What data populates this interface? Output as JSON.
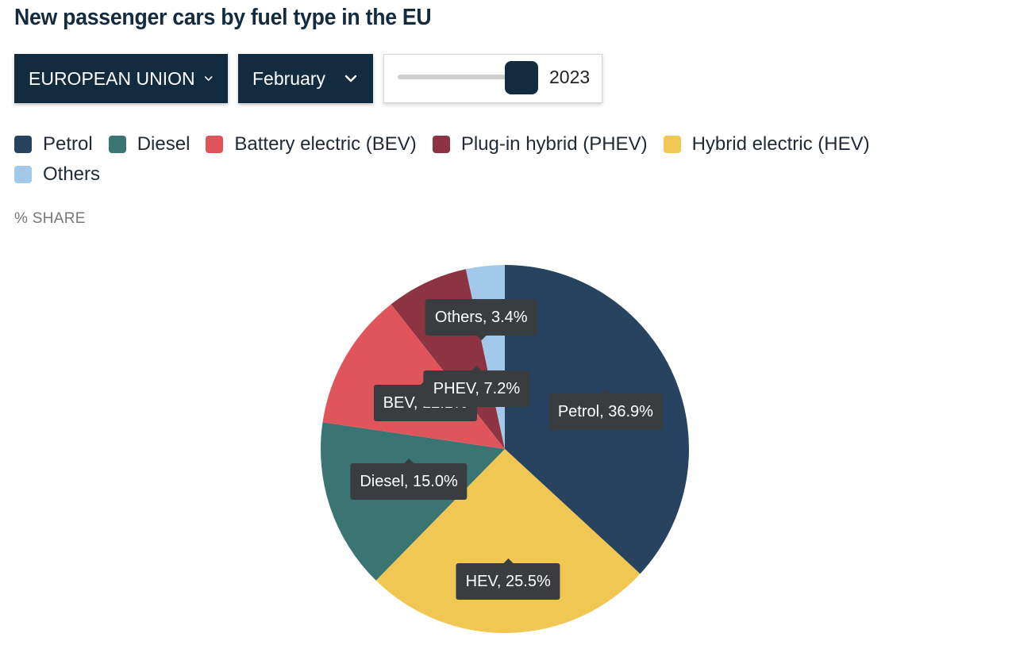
{
  "title": "New passenger cars by fuel type in the EU",
  "controls": {
    "region": "EUROPEAN UNION",
    "month": "February",
    "year": "2023"
  },
  "unit_label": "% SHARE",
  "chart_data": {
    "type": "pie",
    "title": "New passenger cars by fuel type in the EU",
    "unit": "% SHARE",
    "legend": [
      {
        "name": "Petrol",
        "color": "#27435f"
      },
      {
        "name": "Diesel",
        "color": "#3a7573"
      },
      {
        "name": "Battery electric (BEV)",
        "color": "#e0555b"
      },
      {
        "name": "Plug-in hybrid (PHEV)",
        "color": "#8c3441"
      },
      {
        "name": "Hybrid electric (HEV)",
        "color": "#f0c752"
      },
      {
        "name": "Others",
        "color": "#a3c9ea"
      }
    ],
    "slices": [
      {
        "short": "Petrol",
        "value": 36.9,
        "label": "Petrol, 36.9%",
        "color": "#27435f"
      },
      {
        "short": "HEV",
        "value": 25.5,
        "label": "HEV, 25.5%",
        "color": "#f0c752"
      },
      {
        "short": "Diesel",
        "value": 15.0,
        "label": "Diesel, 15.0%",
        "color": "#3a7573"
      },
      {
        "short": "BEV",
        "value": 12.1,
        "label": "BEV, 12.1%",
        "color": "#e0555b"
      },
      {
        "short": "PHEV",
        "value": 7.2,
        "label": "PHEV, 7.2%",
        "color": "#8c3441"
      },
      {
        "short": "Others",
        "value": 3.4,
        "label": "Others, 3.4%",
        "color": "#a3c9ea"
      }
    ]
  }
}
